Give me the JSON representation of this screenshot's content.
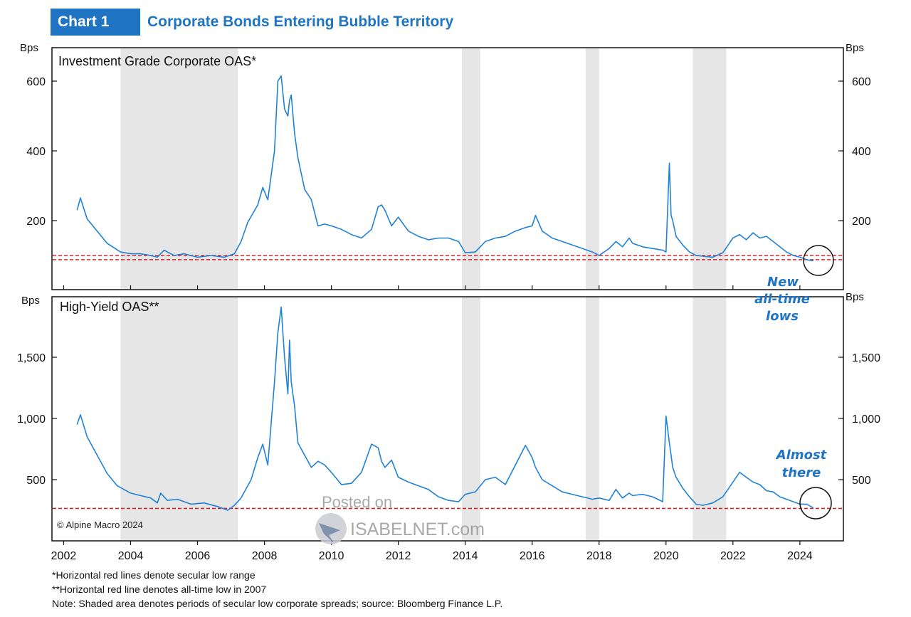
{
  "header": {
    "tag": "Chart 1",
    "title": "Corporate Bonds Entering Bubble Territory"
  },
  "colors": {
    "accent": "#1f74c4",
    "line": "#1f82d8",
    "red": "#d9262e",
    "shade": "#e6e6e6"
  },
  "x_axis": {
    "labels": [
      "2002",
      "2004",
      "2006",
      "2008",
      "2010",
      "2012",
      "2014",
      "2016",
      "2018",
      "2020",
      "2022",
      "2024"
    ]
  },
  "shaded_periods": [
    [
      2003.7,
      2007.2
    ],
    [
      2013.9,
      2014.45
    ],
    [
      2017.6,
      2018.0
    ],
    [
      2020.8,
      2021.8
    ]
  ],
  "chart_data": [
    {
      "type": "line",
      "title": "Investment Grade Corporate OAS*",
      "ylabel": "Bps",
      "ylim": [
        0,
        680
      ],
      "yticks": [
        200,
        400,
        600
      ],
      "ytick_labels": [
        "200",
        "400",
        "600"
      ],
      "reference_lines": [
        88,
        100
      ],
      "annotation": {
        "lines": [
          "New",
          "all-time",
          "lows"
        ]
      },
      "series": [
        {
          "x": [
            2002.4,
            2002.5,
            2002.7,
            2003.0,
            2003.3,
            2003.7,
            2004.0,
            2004.3,
            2004.6,
            2004.8,
            2005.0,
            2005.3,
            2005.6,
            2006.0,
            2006.4,
            2006.8,
            2007.1,
            2007.3,
            2007.5,
            2007.8,
            2007.95,
            2008.1,
            2008.3,
            2008.4,
            2008.5,
            2008.6,
            2008.7,
            2008.75,
            2008.8,
            2008.9,
            2009.0,
            2009.2,
            2009.4,
            2009.6,
            2009.8,
            2010.0,
            2010.3,
            2010.6,
            2010.9,
            2011.2,
            2011.4,
            2011.5,
            2011.6,
            2011.8,
            2012.0,
            2012.3,
            2012.6,
            2012.9,
            2013.2,
            2013.5,
            2013.8,
            2014.0,
            2014.3,
            2014.6,
            2014.9,
            2015.2,
            2015.5,
            2015.8,
            2016.0,
            2016.1,
            2016.3,
            2016.6,
            2016.9,
            2017.2,
            2017.5,
            2017.8,
            2018.0,
            2018.3,
            2018.5,
            2018.7,
            2018.9,
            2019.0,
            2019.3,
            2019.6,
            2019.9,
            2020.0,
            2020.1,
            2020.15,
            2020.2,
            2020.3,
            2020.5,
            2020.7,
            2020.9,
            2021.1,
            2021.4,
            2021.7,
            2022.0,
            2022.2,
            2022.4,
            2022.6,
            2022.8,
            2023.0,
            2023.2,
            2023.4,
            2023.6,
            2023.8,
            2024.0,
            2024.2,
            2024.4
          ],
          "y": [
            230,
            265,
            205,
            170,
            135,
            110,
            105,
            105,
            100,
            95,
            115,
            100,
            105,
            95,
            100,
            95,
            105,
            140,
            195,
            245,
            295,
            260,
            400,
            600,
            615,
            520,
            500,
            545,
            560,
            450,
            380,
            290,
            260,
            185,
            190,
            185,
            175,
            160,
            150,
            175,
            240,
            245,
            230,
            185,
            210,
            170,
            155,
            145,
            150,
            150,
            140,
            108,
            110,
            140,
            150,
            155,
            170,
            180,
            185,
            215,
            170,
            150,
            140,
            130,
            120,
            110,
            100,
            120,
            140,
            125,
            150,
            135,
            125,
            120,
            115,
            110,
            365,
            215,
            200,
            155,
            130,
            110,
            100,
            98,
            95,
            108,
            150,
            160,
            145,
            165,
            150,
            155,
            140,
            125,
            110,
            100,
            95,
            88,
            85
          ]
        }
      ]
    },
    {
      "type": "line",
      "title": "High-Yield OAS**",
      "ylabel": "Bps",
      "ylim": [
        0,
        1950
      ],
      "yticks": [
        500,
        1000,
        1500
      ],
      "ytick_labels": [
        "500",
        "1,000",
        "1,500"
      ],
      "reference_lines": [
        265
      ],
      "annotation": {
        "lines": [
          "Almost",
          "there"
        ]
      },
      "series": [
        {
          "x": [
            2002.4,
            2002.5,
            2002.7,
            2003.0,
            2003.3,
            2003.6,
            2004.0,
            2004.3,
            2004.6,
            2004.8,
            2004.9,
            2005.1,
            2005.4,
            2005.8,
            2006.2,
            2006.6,
            2006.9,
            2007.1,
            2007.3,
            2007.6,
            2007.8,
            2007.95,
            2008.1,
            2008.3,
            2008.4,
            2008.5,
            2008.6,
            2008.7,
            2008.75,
            2008.8,
            2008.9,
            2009.0,
            2009.2,
            2009.4,
            2009.6,
            2009.8,
            2010.0,
            2010.3,
            2010.6,
            2010.9,
            2011.2,
            2011.4,
            2011.5,
            2011.6,
            2011.8,
            2012.0,
            2012.3,
            2012.6,
            2012.9,
            2013.2,
            2013.5,
            2013.8,
            2014.0,
            2014.3,
            2014.6,
            2014.9,
            2015.2,
            2015.5,
            2015.8,
            2016.0,
            2016.1,
            2016.3,
            2016.6,
            2016.9,
            2017.2,
            2017.5,
            2017.8,
            2018.0,
            2018.3,
            2018.5,
            2018.7,
            2018.9,
            2019.0,
            2019.3,
            2019.6,
            2019.9,
            2020.0,
            2020.1,
            2020.15,
            2020.2,
            2020.3,
            2020.5,
            2020.7,
            2020.9,
            2021.1,
            2021.4,
            2021.7,
            2022.0,
            2022.2,
            2022.4,
            2022.6,
            2022.8,
            2023.0,
            2023.2,
            2023.4,
            2023.6,
            2023.8,
            2024.0,
            2024.2,
            2024.4
          ],
          "y": [
            950,
            1030,
            850,
            700,
            550,
            450,
            390,
            370,
            350,
            310,
            390,
            330,
            340,
            300,
            310,
            280,
            250,
            290,
            350,
            500,
            680,
            790,
            620,
            1300,
            1700,
            1910,
            1500,
            1200,
            1640,
            1300,
            1100,
            800,
            700,
            600,
            650,
            620,
            560,
            460,
            470,
            560,
            790,
            760,
            650,
            600,
            660,
            520,
            480,
            450,
            420,
            360,
            330,
            320,
            380,
            400,
            500,
            520,
            460,
            620,
            780,
            680,
            600,
            500,
            450,
            400,
            380,
            360,
            340,
            350,
            330,
            420,
            350,
            390,
            370,
            380,
            360,
            320,
            1020,
            800,
            700,
            600,
            520,
            430,
            360,
            300,
            290,
            310,
            360,
            480,
            560,
            520,
            480,
            460,
            410,
            400,
            360,
            340,
            320,
            300,
            300,
            270
          ]
        }
      ]
    }
  ],
  "copyright": "© Alpine Macro 2024",
  "watermark": {
    "line1": "Posted on",
    "line2": "ISABELNET.com"
  },
  "footnotes": [
    "*Horizontal red lines denote secular low range",
    "**Horizontal red line denotes all-time low in 2007",
    "Note: Shaded area denotes periods of secular low corporate spreads; source: Bloomberg Finance L.P."
  ]
}
